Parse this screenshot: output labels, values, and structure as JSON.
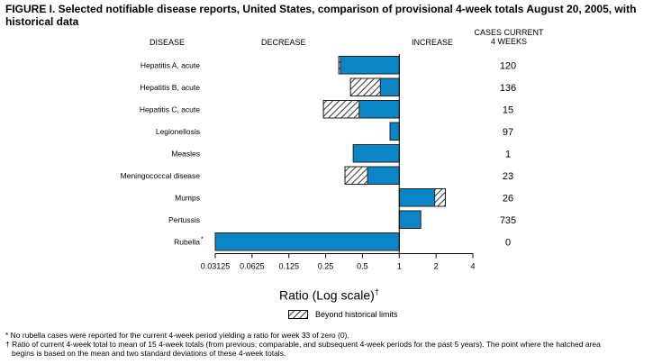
{
  "title": "FIGURE I. Selected notifiable disease reports, United States, comparison of provisional 4-week totals August 20, 2005, with historical data",
  "headers": {
    "disease": "DISEASE",
    "decrease": "DECREASE",
    "increase": "INCREASE",
    "cases_line1": "CASES CURRENT",
    "cases_line2": "4 WEEKS"
  },
  "legend": {
    "label": "Beyond historical limits"
  },
  "footnotes": {
    "star": "* No rubella cases were reported for the current 4-week period yielding a ratio for week 33 of zero (0).",
    "dagger_line1": "† Ratio of current 4-week total to mean of 15 4-week totals (from previous, comparable, and subsequent 4-week periods for the past 5 years). The point where the hatched area",
    "dagger_line2": "begins is based on the mean and two standard deviations of these 4-week totals."
  },
  "colors": {
    "bar": "#0a86c6",
    "background": "#ffffff"
  },
  "chart_data": {
    "type": "bar",
    "orientation": "horizontal",
    "xscale": "log2",
    "xlim": [
      0.03125,
      4
    ],
    "baseline": 1,
    "xlabel": "Ratio (Log scale)",
    "xlabel_mark": "†",
    "xticks": [
      "0.03125",
      "0.0625",
      "0.125",
      "0.25",
      "0.5",
      "1",
      "2",
      "4"
    ],
    "xtick_values": [
      0.03125,
      0.0625,
      0.125,
      0.25,
      0.5,
      1,
      2,
      4
    ],
    "categories": [
      "Hepatitis A, acute",
      "Hepatitis B, acute",
      "Hepatitis C, acute",
      "Legionellosis",
      "Measles",
      "Meningococcal disease",
      "Mumps",
      "Pertussis",
      "Rubella"
    ],
    "category_marks": [
      "",
      "",
      "",
      "",
      "",
      "",
      "",
      "",
      "*"
    ],
    "ratios": [
      0.32,
      0.4,
      0.24,
      0.84,
      0.42,
      0.36,
      2.38,
      1.5,
      0.03125
    ],
    "hatch_start": [
      0.33,
      0.7,
      0.47,
      null,
      null,
      0.55,
      1.95,
      null,
      null
    ],
    "cases": [
      "120",
      "136",
      "15",
      "97",
      "1",
      "23",
      "26",
      "735",
      "0"
    ]
  }
}
